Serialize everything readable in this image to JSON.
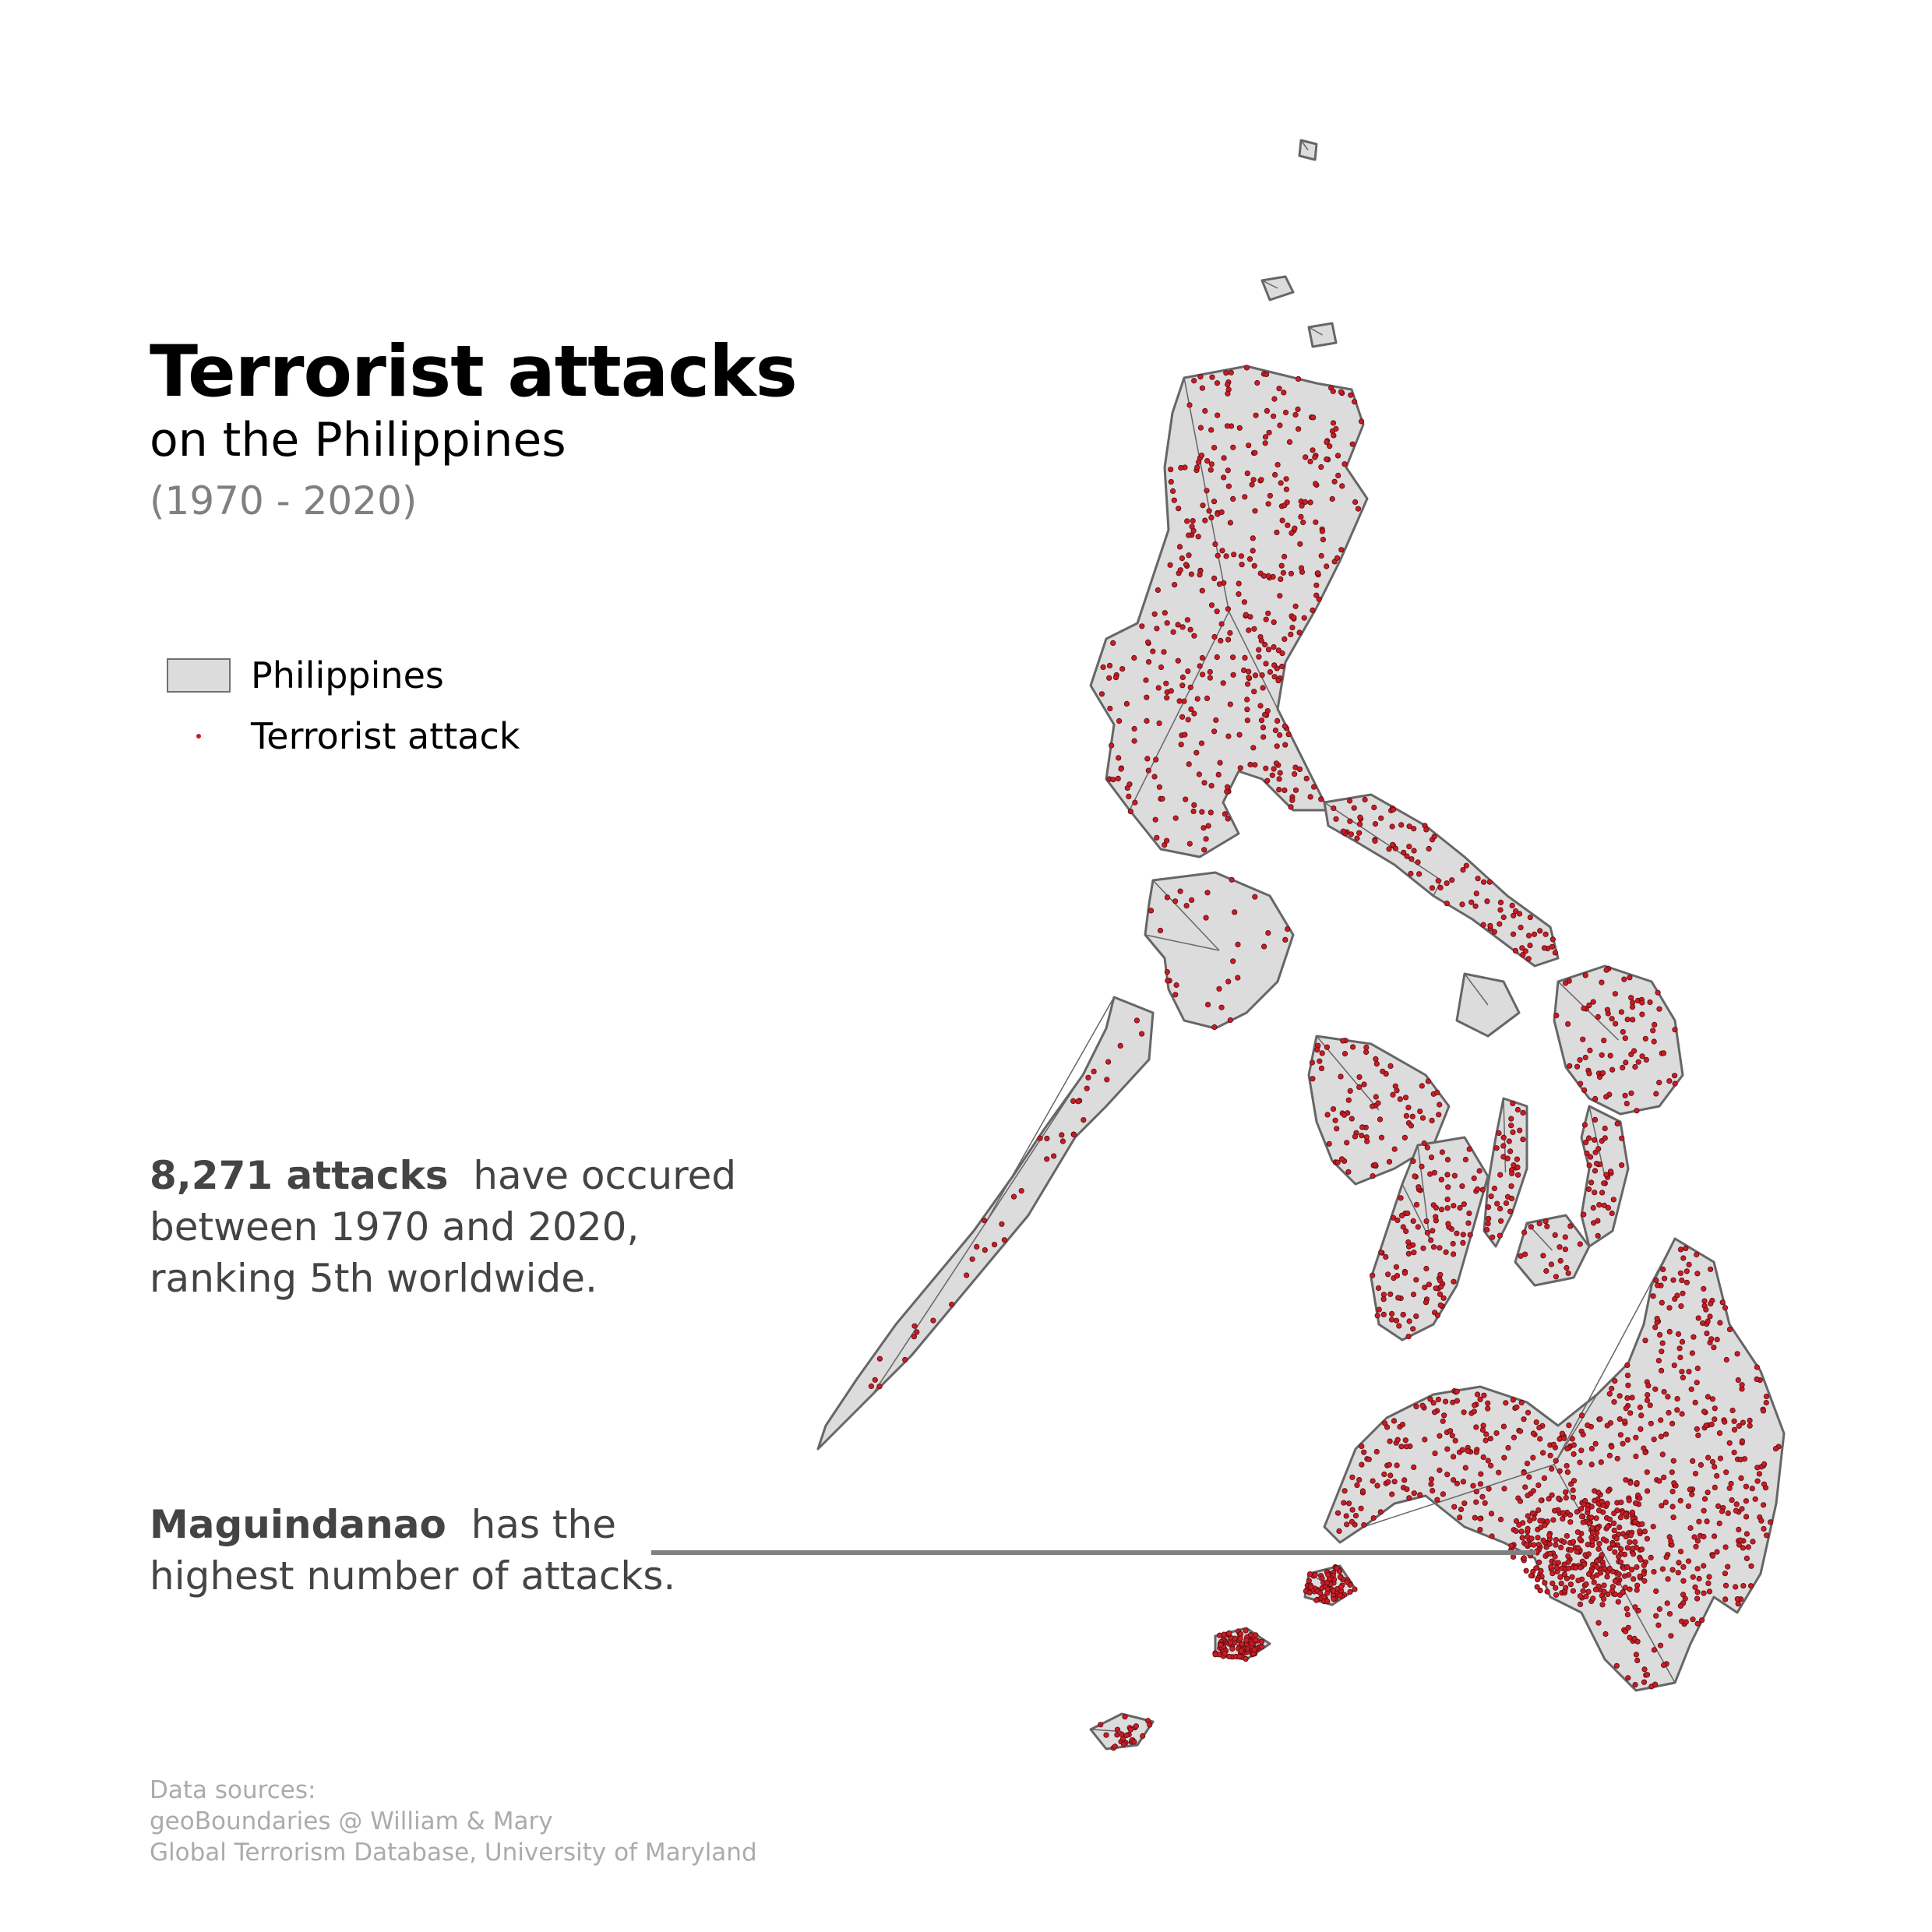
{
  "title": "Terrorist attacks",
  "subtitle": "on the Philippines",
  "period": "(1970 - 2020)",
  "legend": {
    "country_label": "Philippines",
    "attack_label": "Terrorist attack"
  },
  "colors": {
    "land_fill": "#dcdcdc",
    "boundary": "#666666",
    "attack_dot": "#c81d25",
    "leader_line": "#808080"
  },
  "stat_attacks": {
    "bold": "8,271 attacks",
    "line1_rest": "have occured",
    "line2": "between 1970 and 2020,",
    "line3": "ranking 5th worldwide."
  },
  "stat_region": {
    "bold": "Maguindanao",
    "line1_rest": "has the",
    "line2": "highest number of attacks."
  },
  "sources": {
    "heading": "Data sources:",
    "source1": "geoBoundaries @ William & Mary",
    "source2": "Global Terrorism Database, University of Maryland"
  }
}
